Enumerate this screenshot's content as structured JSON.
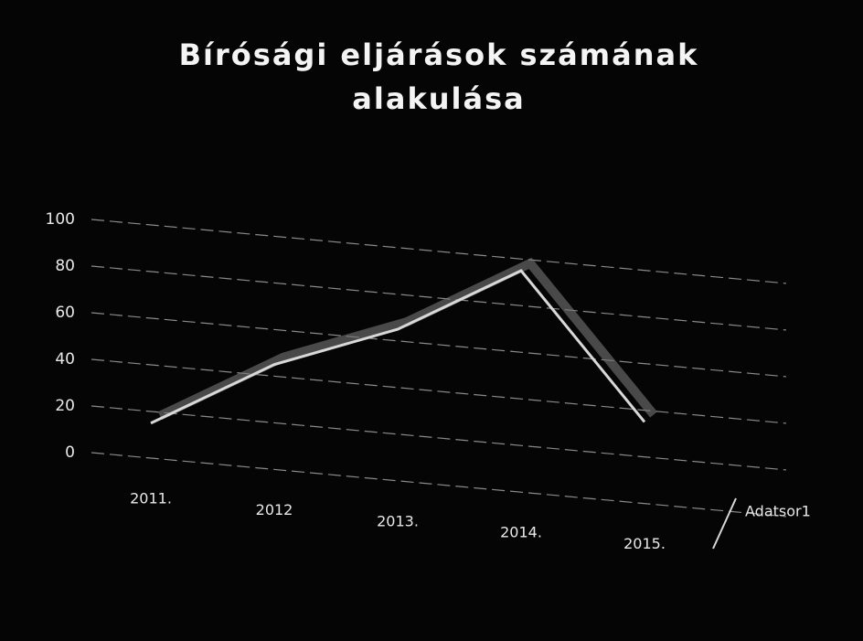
{
  "chart_data": {
    "type": "line",
    "title": "Bírósági eljárások számának alakulása",
    "title_lines": [
      "Bírósági eljárások számának",
      "alakulása"
    ],
    "categories": [
      "2011.",
      "2012",
      "2013.",
      "2014.",
      "2015."
    ],
    "series": [
      {
        "name": "Adatsor1",
        "color": "#d8d8d8",
        "values": [
          15,
          45,
          65,
          95,
          35
        ]
      }
    ],
    "ylim": [
      0,
      100
    ],
    "yticks": [
      0,
      20,
      40,
      60,
      80,
      100
    ],
    "grid": true,
    "legend": "right"
  }
}
